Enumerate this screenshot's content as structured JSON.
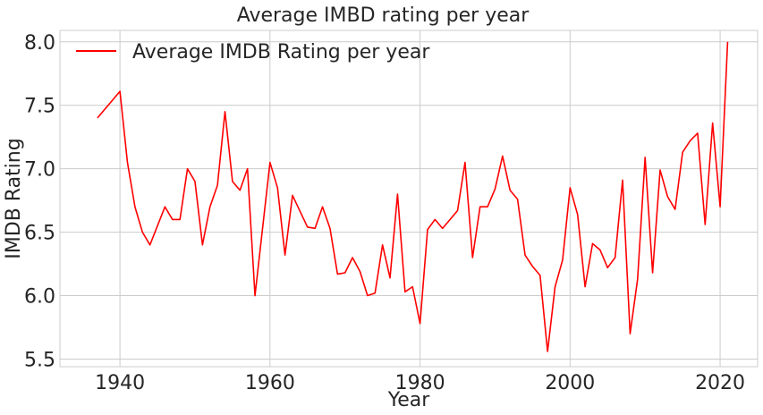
{
  "chart_data": {
    "type": "line",
    "title": "Average IMBD rating per year",
    "xlabel": "Year",
    "ylabel": "IMDB Rating",
    "xlim": [
      1932,
      2025
    ],
    "ylim": [
      5.44,
      8.09
    ],
    "xticks": [
      1940,
      1960,
      1980,
      2000,
      2020
    ],
    "yticks": [
      5.5,
      6.0,
      6.5,
      7.0,
      7.5,
      8.0
    ],
    "xtick_labels": [
      "1940",
      "1960",
      "1980",
      "2000",
      "2020"
    ],
    "ytick_labels": [
      "5.5",
      "6.0",
      "6.5",
      "7.0",
      "7.5",
      "8.0"
    ],
    "grid": true,
    "legend_position": "top-left",
    "series": [
      {
        "name": "Average IMDB Rating per year",
        "color": "#ff0000",
        "x": [
          1937,
          1940,
          1941,
          1942,
          1943,
          1944,
          1946,
          1947,
          1948,
          1949,
          1950,
          1951,
          1952,
          1953,
          1954,
          1955,
          1956,
          1957,
          1958,
          1960,
          1961,
          1962,
          1963,
          1965,
          1966,
          1967,
          1968,
          1969,
          1970,
          1971,
          1972,
          1973,
          1974,
          1975,
          1976,
          1977,
          1978,
          1979,
          1980,
          1981,
          1982,
          1983,
          1985,
          1986,
          1987,
          1988,
          1989,
          1990,
          1991,
          1992,
          1993,
          1994,
          1995,
          1996,
          1997,
          1998,
          1999,
          2000,
          2001,
          2002,
          2003,
          2004,
          2005,
          2006,
          2007,
          2008,
          2009,
          2010,
          2011,
          2012,
          2013,
          2014,
          2015,
          2016,
          2017,
          2018,
          2019,
          2020,
          2021
        ],
        "values": [
          7.4,
          7.61,
          7.05,
          6.7,
          6.5,
          6.4,
          6.7,
          6.6,
          6.6,
          7.0,
          6.9,
          6.4,
          6.7,
          6.87,
          7.45,
          6.9,
          6.83,
          7.0,
          6.0,
          7.05,
          6.85,
          6.32,
          6.79,
          6.54,
          6.53,
          6.7,
          6.53,
          6.17,
          6.18,
          6.3,
          6.19,
          6.0,
          6.02,
          6.4,
          6.14,
          6.8,
          6.03,
          6.07,
          5.78,
          6.52,
          6.6,
          6.53,
          6.67,
          7.05,
          6.3,
          6.7,
          6.7,
          6.84,
          7.1,
          6.83,
          6.76,
          6.32,
          6.23,
          6.16,
          5.56,
          6.07,
          6.28,
          6.85,
          6.64,
          6.07,
          6.41,
          6.36,
          6.22,
          6.3,
          6.91,
          5.7,
          6.13,
          7.09,
          6.18,
          6.99,
          6.78,
          6.68,
          7.13,
          7.22,
          7.28,
          6.56,
          7.36,
          6.7,
          8.0
        ]
      }
    ]
  }
}
